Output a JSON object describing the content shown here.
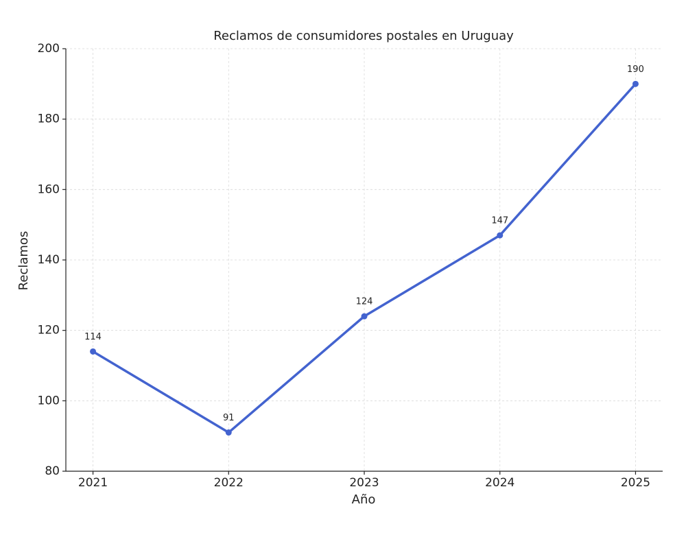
{
  "chart_data": {
    "type": "line",
    "title": "Reclamos de consumidores postales en Uruguay",
    "x_label": "Año",
    "y_label": "Reclamos",
    "x": [
      2021,
      2022,
      2023,
      2024,
      2025
    ],
    "series": [
      {
        "name": "Reclamos",
        "color": "#4363cf",
        "values": [
          114,
          91,
          124,
          147,
          190
        ]
      }
    ],
    "xlim": [
      2020.8,
      2025.2
    ],
    "xticks": [
      2021,
      2022,
      2023,
      2024,
      2025
    ],
    "ylim": [
      80,
      200
    ],
    "yticks": [
      80,
      100,
      120,
      140,
      160,
      180,
      200
    ],
    "grid": true
  }
}
